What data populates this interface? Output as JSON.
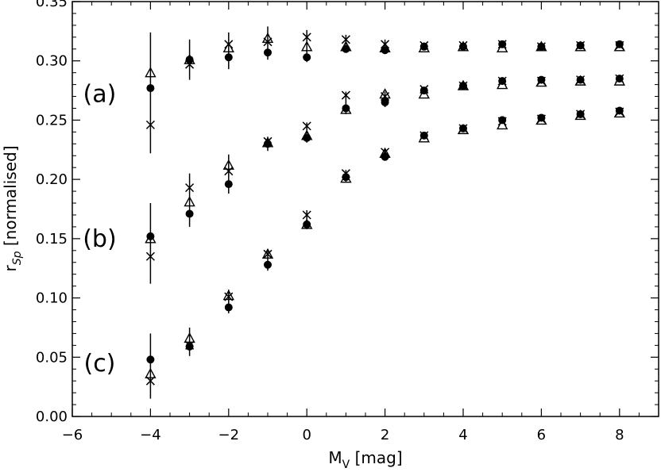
{
  "chart_data": {
    "type": "scatter",
    "xlabel_main": "M",
    "xlabel_sub": "V",
    "xlabel_rest": " [mag]",
    "ylabel_main": "r",
    "ylabel_sub": "Sp",
    "ylabel_rest": " [normalised]",
    "xlim": [
      -6,
      9
    ],
    "ylim": [
      0.0,
      0.35
    ],
    "x_ticks": [
      -6,
      -4,
      -2,
      0,
      2,
      4,
      6,
      8
    ],
    "x_tick_labels": [
      "−6",
      "−4",
      "−2",
      "0",
      "2",
      "4",
      "6",
      "8"
    ],
    "y_ticks": [
      0.0,
      0.05,
      0.1,
      0.15,
      0.2,
      0.25,
      0.3,
      0.35
    ],
    "y_tick_labels": [
      "0.00",
      "0.05",
      "0.10",
      "0.15",
      "0.20",
      "0.25",
      "0.30",
      "0.35"
    ],
    "grid": false,
    "legend": "none",
    "panel_labels": [
      {
        "text": "(a)",
        "x": -5.3,
        "y": 0.272
      },
      {
        "text": "(b)",
        "x": -5.3,
        "y": 0.15
      },
      {
        "text": "(c)",
        "x": -5.3,
        "y": 0.045
      }
    ],
    "groups": [
      {
        "label": "(a)",
        "x": [
          -4,
          -3,
          -2,
          -1,
          0,
          1,
          2,
          3,
          4,
          5,
          6,
          7,
          8
        ],
        "filled_circle": [
          0.277,
          0.301,
          0.303,
          0.307,
          0.303,
          0.31,
          0.309,
          0.312,
          0.312,
          0.314,
          0.312,
          0.313,
          0.314
        ],
        "triangle": [
          0.29,
          0.301,
          0.311,
          0.319,
          0.312,
          0.312,
          0.311,
          0.311,
          0.312,
          0.311,
          0.312,
          0.312,
          0.312
        ],
        "cross": [
          0.246,
          0.297,
          0.314,
          0.316,
          0.32,
          0.318,
          0.314,
          0.313,
          0.313,
          0.314,
          0.312,
          0.313,
          0.313
        ],
        "error_bars": [
          {
            "x": -4,
            "low": 0.222,
            "high": 0.324
          },
          {
            "x": -3,
            "low": 0.284,
            "high": 0.318
          },
          {
            "x": -2,
            "low": 0.293,
            "high": 0.324
          },
          {
            "x": -1,
            "low": 0.301,
            "high": 0.329
          },
          {
            "x": 0,
            "low": 0.299,
            "high": 0.326
          },
          {
            "x": 1,
            "low": 0.307,
            "high": 0.322
          },
          {
            "x": 2,
            "low": 0.307,
            "high": 0.318
          }
        ]
      },
      {
        "label": "(b)",
        "x": [
          -4,
          -3,
          -2,
          -1,
          0,
          1,
          2,
          3,
          4,
          5,
          6,
          7,
          8
        ],
        "filled_circle": [
          0.152,
          0.171,
          0.196,
          0.23,
          0.235,
          0.26,
          0.265,
          0.275,
          0.279,
          0.283,
          0.284,
          0.284,
          0.285
        ],
        "triangle": [
          0.15,
          0.181,
          0.212,
          0.231,
          0.237,
          0.259,
          0.272,
          0.272,
          0.279,
          0.28,
          0.282,
          0.283,
          0.283
        ],
        "cross": [
          0.135,
          0.193,
          0.207,
          0.232,
          0.245,
          0.271,
          0.27,
          0.276,
          0.279,
          0.283,
          0.283,
          0.284,
          0.285
        ],
        "error_bars": [
          {
            "x": -4,
            "low": 0.112,
            "high": 0.18
          },
          {
            "x": -3,
            "low": 0.16,
            "high": 0.205
          },
          {
            "x": -2,
            "low": 0.188,
            "high": 0.221
          },
          {
            "x": -1,
            "low": 0.224,
            "high": 0.236
          },
          {
            "x": 0,
            "low": 0.231,
            "high": 0.248
          },
          {
            "x": 1,
            "low": 0.255,
            "high": 0.274
          },
          {
            "x": 2,
            "low": 0.261,
            "high": 0.274
          }
        ]
      },
      {
        "label": "(c)",
        "x": [
          -4,
          -3,
          -2,
          -1,
          0,
          1,
          2,
          3,
          4,
          5,
          6,
          7,
          8
        ],
        "filled_circle": [
          0.048,
          0.059,
          0.092,
          0.128,
          0.162,
          0.202,
          0.219,
          0.237,
          0.243,
          0.25,
          0.252,
          0.255,
          0.258
        ],
        "triangle": [
          0.036,
          0.066,
          0.102,
          0.137,
          0.162,
          0.201,
          0.222,
          0.235,
          0.242,
          0.246,
          0.25,
          0.254,
          0.256
        ],
        "cross": [
          0.03,
          0.06,
          0.101,
          0.137,
          0.17,
          0.205,
          0.223,
          0.237,
          0.243,
          0.249,
          0.251,
          0.255,
          0.257
        ],
        "error_bars": [
          {
            "x": -4,
            "low": 0.015,
            "high": 0.07
          },
          {
            "x": -3,
            "low": 0.051,
            "high": 0.075
          },
          {
            "x": -2,
            "low": 0.087,
            "high": 0.107
          },
          {
            "x": -1,
            "low": 0.123,
            "high": 0.141
          },
          {
            "x": 0,
            "low": 0.158,
            "high": 0.174
          },
          {
            "x": 1,
            "low": 0.198,
            "high": 0.208
          },
          {
            "x": 2,
            "low": 0.216,
            "high": 0.226
          }
        ]
      }
    ]
  }
}
